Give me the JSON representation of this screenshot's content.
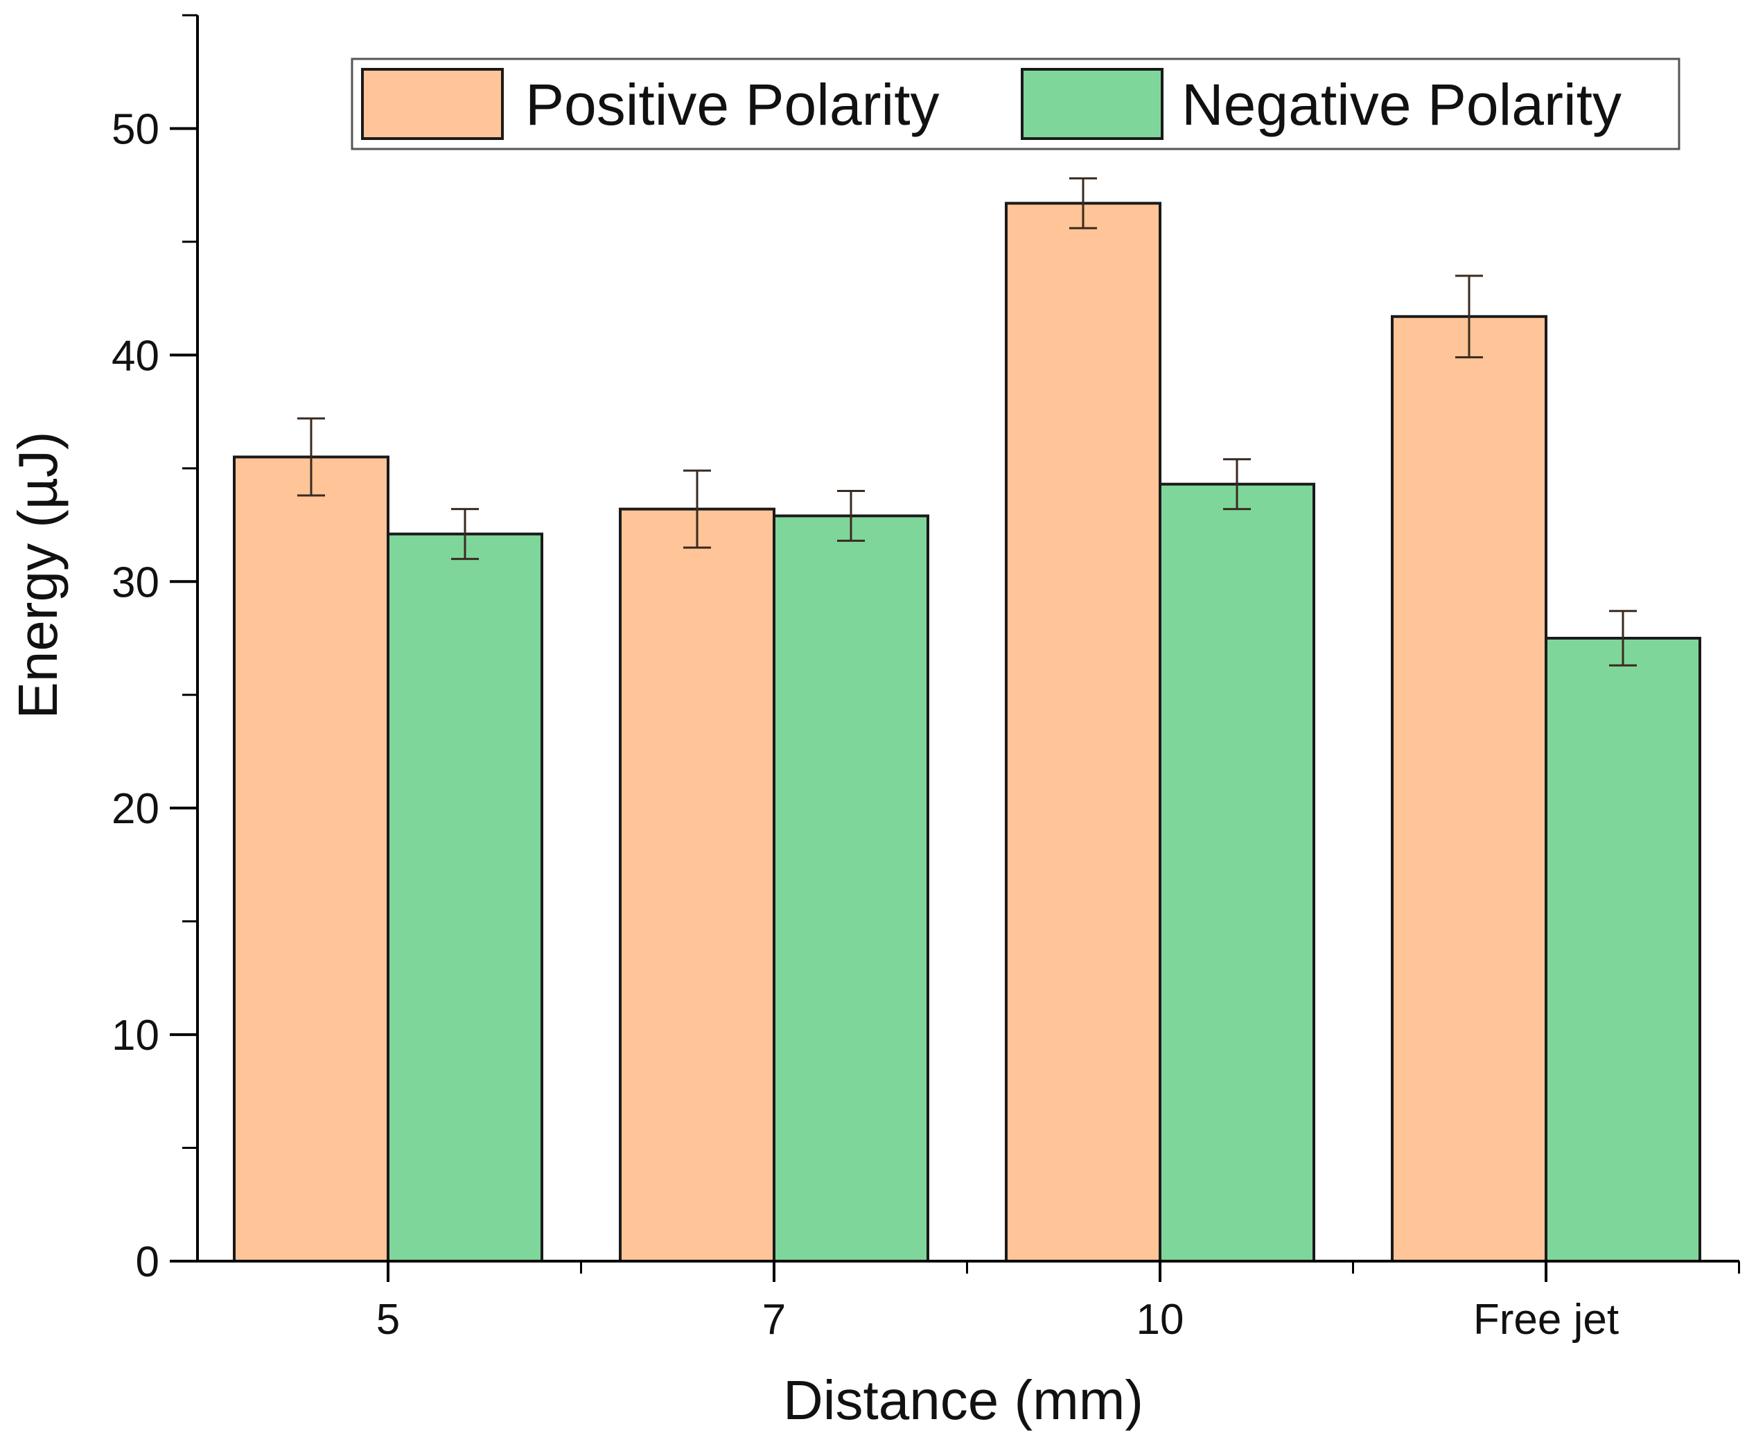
{
  "chart_data": {
    "type": "bar",
    "categories": [
      "5",
      "7",
      "10",
      "Free jet"
    ],
    "series": [
      {
        "name": "Positive Polarity",
        "color": "#ffc497",
        "values": [
          35.5,
          33.2,
          46.7,
          41.7
        ],
        "errors": [
          1.7,
          1.7,
          1.1,
          1.8
        ]
      },
      {
        "name": "Negative Polarity",
        "color": "#7fd69a",
        "values": [
          32.1,
          32.9,
          34.3,
          27.5
        ],
        "errors": [
          1.1,
          1.1,
          1.1,
          1.2
        ]
      }
    ],
    "xlabel": "Distance (mm)",
    "ylabel": "Energy (µJ)",
    "ylim": [
      0,
      55
    ],
    "yticks": [
      "0",
      "10",
      "20",
      "30",
      "40",
      "50"
    ],
    "grid": false,
    "legend_position": "top"
  }
}
